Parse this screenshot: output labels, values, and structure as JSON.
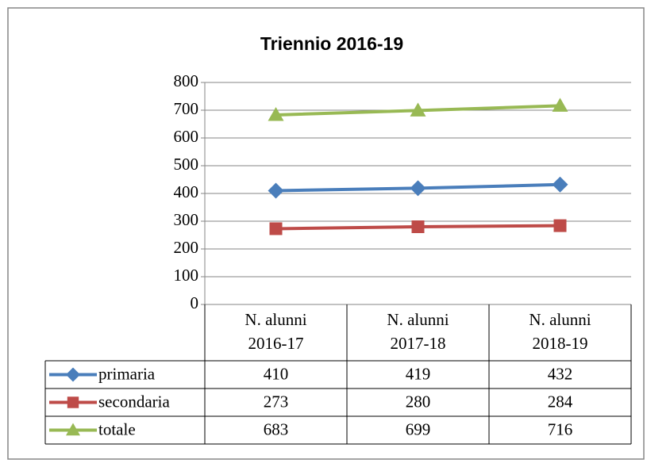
{
  "chart_data": {
    "type": "line",
    "title": "Triennio 2016-19",
    "categories": [
      "N. alunni 2016-17",
      "N. alunni 2017-18",
      "N. alunni 2018-19"
    ],
    "series": [
      {
        "name": "primaria",
        "color": "#4a7ebb",
        "marker": "diamond",
        "values": [
          410,
          419,
          432
        ]
      },
      {
        "name": "secondaria",
        "color": "#be4b48",
        "marker": "square",
        "values": [
          273,
          280,
          284
        ]
      },
      {
        "name": "totale",
        "color": "#98b954",
        "marker": "triangle",
        "values": [
          683,
          699,
          716
        ]
      }
    ],
    "ylim": [
      0,
      800
    ],
    "yticks": [
      0,
      100,
      200,
      300,
      400,
      500,
      600,
      700,
      800
    ],
    "grid": true,
    "data_table": true
  }
}
